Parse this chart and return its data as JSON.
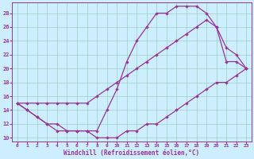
{
  "xlabel": "Windchill (Refroidissement éolien,°C)",
  "background_color": "#cceeff",
  "grid_color": "#9ecfbf",
  "line_color": "#993399",
  "xlim": [
    -0.5,
    23.5
  ],
  "ylim": [
    9.5,
    29.5
  ],
  "xticks": [
    0,
    1,
    2,
    3,
    4,
    5,
    6,
    7,
    8,
    9,
    10,
    11,
    12,
    13,
    14,
    15,
    16,
    17,
    18,
    19,
    20,
    21,
    22,
    23
  ],
  "yticks": [
    10,
    12,
    14,
    16,
    18,
    20,
    22,
    24,
    26,
    28
  ],
  "curve_bottom_x": [
    0,
    1,
    2,
    3,
    4,
    5,
    6,
    7,
    8,
    9,
    10,
    11,
    12,
    13,
    14,
    15,
    16,
    17,
    18,
    19,
    20,
    21,
    22,
    23
  ],
  "curve_bottom_y": [
    15,
    14,
    13,
    12,
    11,
    11,
    11,
    11,
    10,
    10,
    10,
    11,
    11,
    12,
    12,
    13,
    14,
    15,
    16,
    17,
    18,
    18,
    19,
    20
  ],
  "curve_top_x": [
    0,
    1,
    2,
    3,
    4,
    5,
    6,
    7,
    8,
    9,
    10,
    11,
    12,
    13,
    14,
    15,
    16,
    17,
    18,
    19,
    20,
    21,
    22,
    23
  ],
  "curve_top_y": [
    15,
    14,
    13,
    12,
    12,
    11,
    11,
    11,
    11,
    14,
    17,
    21,
    24,
    26,
    28,
    28,
    29,
    29,
    29,
    28,
    26,
    21,
    21,
    20
  ],
  "curve_diag_x": [
    0,
    1,
    2,
    3,
    4,
    5,
    6,
    7,
    8,
    9,
    10,
    11,
    12,
    13,
    14,
    15,
    16,
    17,
    18,
    19,
    20,
    21,
    22,
    23
  ],
  "curve_diag_y": [
    15,
    15,
    15,
    15,
    15,
    15,
    15,
    15,
    16,
    17,
    18,
    19,
    20,
    21,
    22,
    23,
    24,
    25,
    26,
    27,
    26,
    23,
    22,
    20
  ]
}
